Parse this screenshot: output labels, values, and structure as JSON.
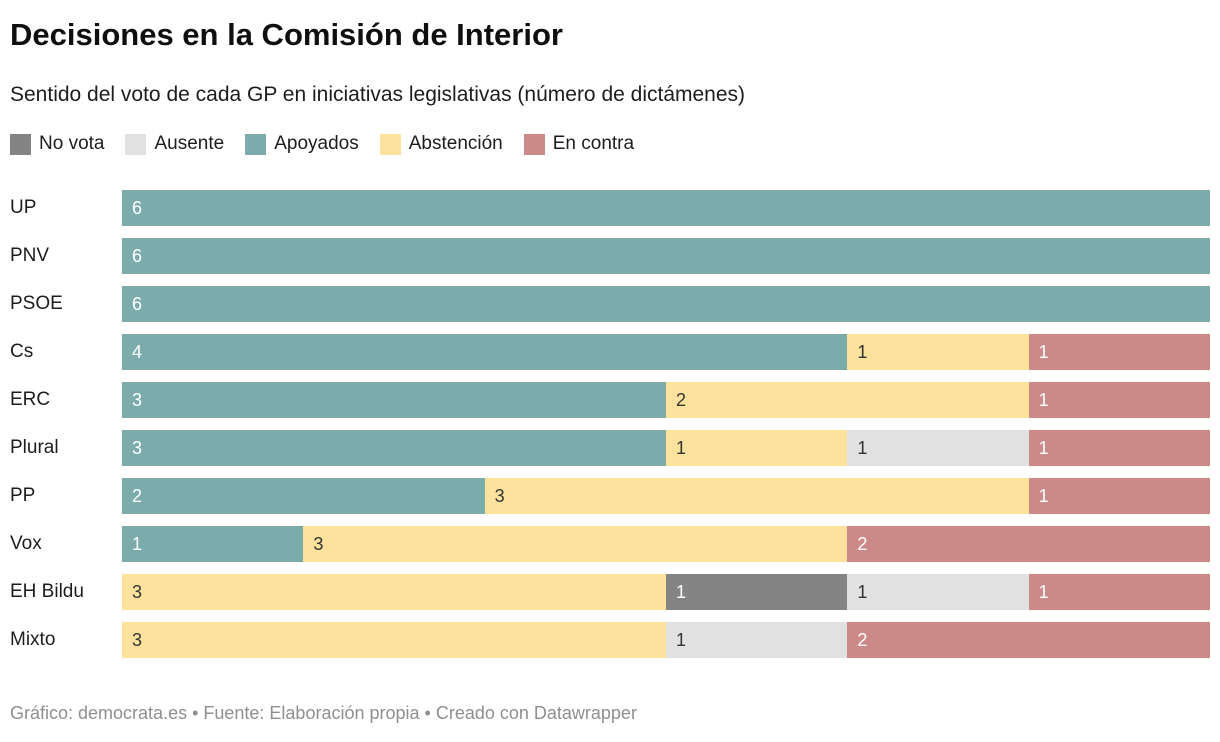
{
  "header": {
    "title": "Decisiones en la Comisión de Interior",
    "subtitle": "Sentido del voto de cada GP en iniciativas legislativas (número de dictámenes)"
  },
  "legend": [
    {
      "label": "No vota",
      "slug": "no-vota",
      "color": "#848484",
      "text_color": "#ffffff"
    },
    {
      "label": "Ausente",
      "slug": "ausente",
      "color": "#e1e1e1",
      "text_color": "#333333"
    },
    {
      "label": "Apoyados",
      "slug": "apoyados",
      "color": "#7bacab",
      "text_color": "#ffffff"
    },
    {
      "label": "Abstención",
      "slug": "abstencion",
      "color": "#fde29d",
      "text_color": "#333333"
    },
    {
      "label": "En contra",
      "slug": "en-contra",
      "color": "#cb8a88",
      "text_color": "#ffffff"
    }
  ],
  "chart_data": {
    "type": "bar",
    "stacked": true,
    "orientation": "horizontal",
    "x_max": 6,
    "grid": false,
    "value_labels": "inside-left",
    "categories": [
      "UP",
      "PNV",
      "PSOE",
      "Cs",
      "ERC",
      "Plural",
      "PP",
      "Vox",
      "EH Bildu",
      "Mixto"
    ],
    "series_order": [
      "Apoyados",
      "Abstención",
      "No vota",
      "Ausente",
      "En contra"
    ],
    "series": [
      {
        "name": "Apoyados",
        "values": [
          6,
          6,
          6,
          4,
          3,
          3,
          2,
          1,
          0,
          0
        ]
      },
      {
        "name": "Abstención",
        "values": [
          0,
          0,
          0,
          1,
          2,
          1,
          3,
          3,
          3,
          3
        ]
      },
      {
        "name": "No vota",
        "values": [
          0,
          0,
          0,
          0,
          0,
          0,
          0,
          0,
          1,
          0
        ]
      },
      {
        "name": "Ausente",
        "values": [
          0,
          0,
          0,
          0,
          0,
          1,
          0,
          0,
          1,
          1
        ]
      },
      {
        "name": "En contra",
        "values": [
          0,
          0,
          0,
          1,
          1,
          1,
          1,
          2,
          1,
          2
        ]
      }
    ]
  },
  "footer": {
    "text": "Gráfico: democrata.es • Fuente: Elaboración propia • Creado con Datawrapper"
  }
}
